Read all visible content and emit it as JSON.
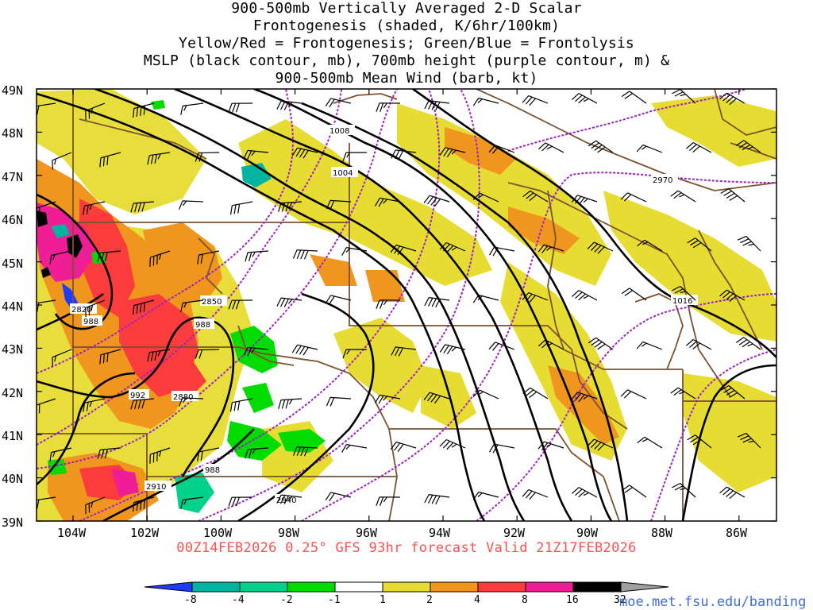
{
  "title": {
    "line1": "900-500mb Vertically Averaged 2-D Scalar",
    "line2": "Frontogenesis (shaded, K/6hr/100km)",
    "line3": "Yellow/Red = Frontogenesis;  Green/Blue = Frontolysis",
    "line4": "MSLP (black contour, mb), 700mb height (purple contour, m) &",
    "line5": "900-500mb Mean Wind (barb, kt)"
  },
  "axes": {
    "lat_labels": [
      "49N",
      "48N",
      "47N",
      "46N",
      "45N",
      "44N",
      "43N",
      "42N",
      "41N",
      "40N",
      "39N"
    ],
    "lon_labels": [
      "104W",
      "102W",
      "100W",
      "98W",
      "96W",
      "94W",
      "92W",
      "90W",
      "88W",
      "86W"
    ]
  },
  "valid_line": "00Z14FEB2026 0.25° GFS 93hr forecast Valid 21Z17FEB2026",
  "colorbar": {
    "labels": [
      "-8",
      "-4",
      "-2",
      "-1",
      "1",
      "2",
      "4",
      "8",
      "16",
      "32"
    ],
    "colors": [
      "#1e3cff",
      "#00b4a0",
      "#00d28c",
      "#00dc00",
      "#ffffff",
      "#e6dc32",
      "#f0961e",
      "#fa3c3c",
      "#f01e96",
      "#000000",
      "#a0a0a0"
    ]
  },
  "contour_labels": {
    "mslp": [
      "1008",
      "1004",
      "1016",
      "988",
      "988",
      "992",
      "988"
    ],
    "height": [
      "2970",
      "2820",
      "2850",
      "2880",
      "2910",
      "2940"
    ]
  },
  "url": "moe.met.fsu.edu/banding"
}
